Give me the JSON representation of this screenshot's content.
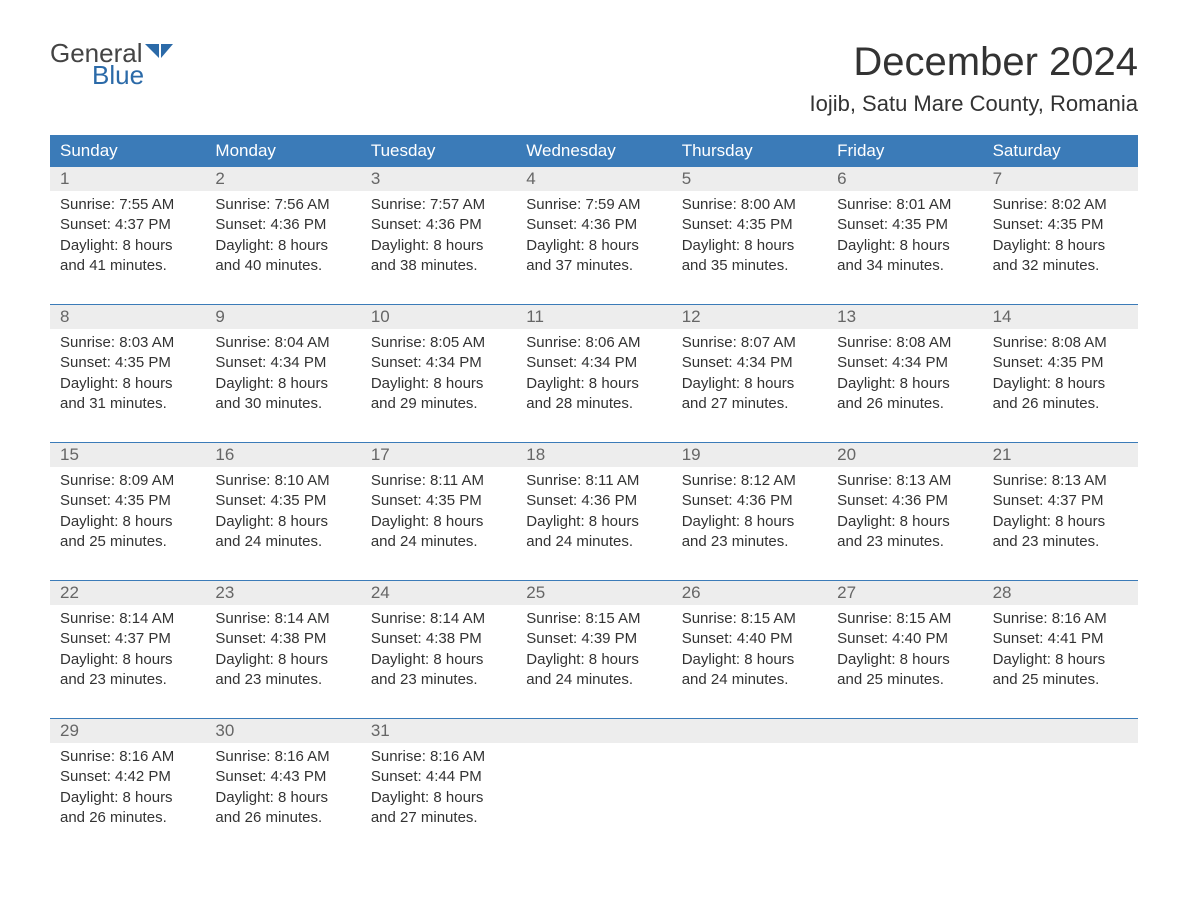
{
  "logo": {
    "textGeneral": "General",
    "textBlue": "Blue",
    "iconColor": "#2b6aa8"
  },
  "title": "December 2024",
  "location": "Iojib, Satu Mare County, Romania",
  "colors": {
    "headerBg": "#3b7bb8",
    "headerText": "#ffffff",
    "dayNumberBg": "#ededed",
    "dayNumberText": "#666666",
    "bodyText": "#333333",
    "borderColor": "#3b7bb8",
    "background": "#ffffff"
  },
  "dayNames": [
    "Sunday",
    "Monday",
    "Tuesday",
    "Wednesday",
    "Thursday",
    "Friday",
    "Saturday"
  ],
  "weeks": [
    [
      {
        "num": "1",
        "sunrise": "Sunrise: 7:55 AM",
        "sunset": "Sunset: 4:37 PM",
        "daylight1": "Daylight: 8 hours",
        "daylight2": "and 41 minutes."
      },
      {
        "num": "2",
        "sunrise": "Sunrise: 7:56 AM",
        "sunset": "Sunset: 4:36 PM",
        "daylight1": "Daylight: 8 hours",
        "daylight2": "and 40 minutes."
      },
      {
        "num": "3",
        "sunrise": "Sunrise: 7:57 AM",
        "sunset": "Sunset: 4:36 PM",
        "daylight1": "Daylight: 8 hours",
        "daylight2": "and 38 minutes."
      },
      {
        "num": "4",
        "sunrise": "Sunrise: 7:59 AM",
        "sunset": "Sunset: 4:36 PM",
        "daylight1": "Daylight: 8 hours",
        "daylight2": "and 37 minutes."
      },
      {
        "num": "5",
        "sunrise": "Sunrise: 8:00 AM",
        "sunset": "Sunset: 4:35 PM",
        "daylight1": "Daylight: 8 hours",
        "daylight2": "and 35 minutes."
      },
      {
        "num": "6",
        "sunrise": "Sunrise: 8:01 AM",
        "sunset": "Sunset: 4:35 PM",
        "daylight1": "Daylight: 8 hours",
        "daylight2": "and 34 minutes."
      },
      {
        "num": "7",
        "sunrise": "Sunrise: 8:02 AM",
        "sunset": "Sunset: 4:35 PM",
        "daylight1": "Daylight: 8 hours",
        "daylight2": "and 32 minutes."
      }
    ],
    [
      {
        "num": "8",
        "sunrise": "Sunrise: 8:03 AM",
        "sunset": "Sunset: 4:35 PM",
        "daylight1": "Daylight: 8 hours",
        "daylight2": "and 31 minutes."
      },
      {
        "num": "9",
        "sunrise": "Sunrise: 8:04 AM",
        "sunset": "Sunset: 4:34 PM",
        "daylight1": "Daylight: 8 hours",
        "daylight2": "and 30 minutes."
      },
      {
        "num": "10",
        "sunrise": "Sunrise: 8:05 AM",
        "sunset": "Sunset: 4:34 PM",
        "daylight1": "Daylight: 8 hours",
        "daylight2": "and 29 minutes."
      },
      {
        "num": "11",
        "sunrise": "Sunrise: 8:06 AM",
        "sunset": "Sunset: 4:34 PM",
        "daylight1": "Daylight: 8 hours",
        "daylight2": "and 28 minutes."
      },
      {
        "num": "12",
        "sunrise": "Sunrise: 8:07 AM",
        "sunset": "Sunset: 4:34 PM",
        "daylight1": "Daylight: 8 hours",
        "daylight2": "and 27 minutes."
      },
      {
        "num": "13",
        "sunrise": "Sunrise: 8:08 AM",
        "sunset": "Sunset: 4:34 PM",
        "daylight1": "Daylight: 8 hours",
        "daylight2": "and 26 minutes."
      },
      {
        "num": "14",
        "sunrise": "Sunrise: 8:08 AM",
        "sunset": "Sunset: 4:35 PM",
        "daylight1": "Daylight: 8 hours",
        "daylight2": "and 26 minutes."
      }
    ],
    [
      {
        "num": "15",
        "sunrise": "Sunrise: 8:09 AM",
        "sunset": "Sunset: 4:35 PM",
        "daylight1": "Daylight: 8 hours",
        "daylight2": "and 25 minutes."
      },
      {
        "num": "16",
        "sunrise": "Sunrise: 8:10 AM",
        "sunset": "Sunset: 4:35 PM",
        "daylight1": "Daylight: 8 hours",
        "daylight2": "and 24 minutes."
      },
      {
        "num": "17",
        "sunrise": "Sunrise: 8:11 AM",
        "sunset": "Sunset: 4:35 PM",
        "daylight1": "Daylight: 8 hours",
        "daylight2": "and 24 minutes."
      },
      {
        "num": "18",
        "sunrise": "Sunrise: 8:11 AM",
        "sunset": "Sunset: 4:36 PM",
        "daylight1": "Daylight: 8 hours",
        "daylight2": "and 24 minutes."
      },
      {
        "num": "19",
        "sunrise": "Sunrise: 8:12 AM",
        "sunset": "Sunset: 4:36 PM",
        "daylight1": "Daylight: 8 hours",
        "daylight2": "and 23 minutes."
      },
      {
        "num": "20",
        "sunrise": "Sunrise: 8:13 AM",
        "sunset": "Sunset: 4:36 PM",
        "daylight1": "Daylight: 8 hours",
        "daylight2": "and 23 minutes."
      },
      {
        "num": "21",
        "sunrise": "Sunrise: 8:13 AM",
        "sunset": "Sunset: 4:37 PM",
        "daylight1": "Daylight: 8 hours",
        "daylight2": "and 23 minutes."
      }
    ],
    [
      {
        "num": "22",
        "sunrise": "Sunrise: 8:14 AM",
        "sunset": "Sunset: 4:37 PM",
        "daylight1": "Daylight: 8 hours",
        "daylight2": "and 23 minutes."
      },
      {
        "num": "23",
        "sunrise": "Sunrise: 8:14 AM",
        "sunset": "Sunset: 4:38 PM",
        "daylight1": "Daylight: 8 hours",
        "daylight2": "and 23 minutes."
      },
      {
        "num": "24",
        "sunrise": "Sunrise: 8:14 AM",
        "sunset": "Sunset: 4:38 PM",
        "daylight1": "Daylight: 8 hours",
        "daylight2": "and 23 minutes."
      },
      {
        "num": "25",
        "sunrise": "Sunrise: 8:15 AM",
        "sunset": "Sunset: 4:39 PM",
        "daylight1": "Daylight: 8 hours",
        "daylight2": "and 24 minutes."
      },
      {
        "num": "26",
        "sunrise": "Sunrise: 8:15 AM",
        "sunset": "Sunset: 4:40 PM",
        "daylight1": "Daylight: 8 hours",
        "daylight2": "and 24 minutes."
      },
      {
        "num": "27",
        "sunrise": "Sunrise: 8:15 AM",
        "sunset": "Sunset: 4:40 PM",
        "daylight1": "Daylight: 8 hours",
        "daylight2": "and 25 minutes."
      },
      {
        "num": "28",
        "sunrise": "Sunrise: 8:16 AM",
        "sunset": "Sunset: 4:41 PM",
        "daylight1": "Daylight: 8 hours",
        "daylight2": "and 25 minutes."
      }
    ],
    [
      {
        "num": "29",
        "sunrise": "Sunrise: 8:16 AM",
        "sunset": "Sunset: 4:42 PM",
        "daylight1": "Daylight: 8 hours",
        "daylight2": "and 26 minutes."
      },
      {
        "num": "30",
        "sunrise": "Sunrise: 8:16 AM",
        "sunset": "Sunset: 4:43 PM",
        "daylight1": "Daylight: 8 hours",
        "daylight2": "and 26 minutes."
      },
      {
        "num": "31",
        "sunrise": "Sunrise: 8:16 AM",
        "sunset": "Sunset: 4:44 PM",
        "daylight1": "Daylight: 8 hours",
        "daylight2": "and 27 minutes."
      },
      null,
      null,
      null,
      null
    ]
  ]
}
